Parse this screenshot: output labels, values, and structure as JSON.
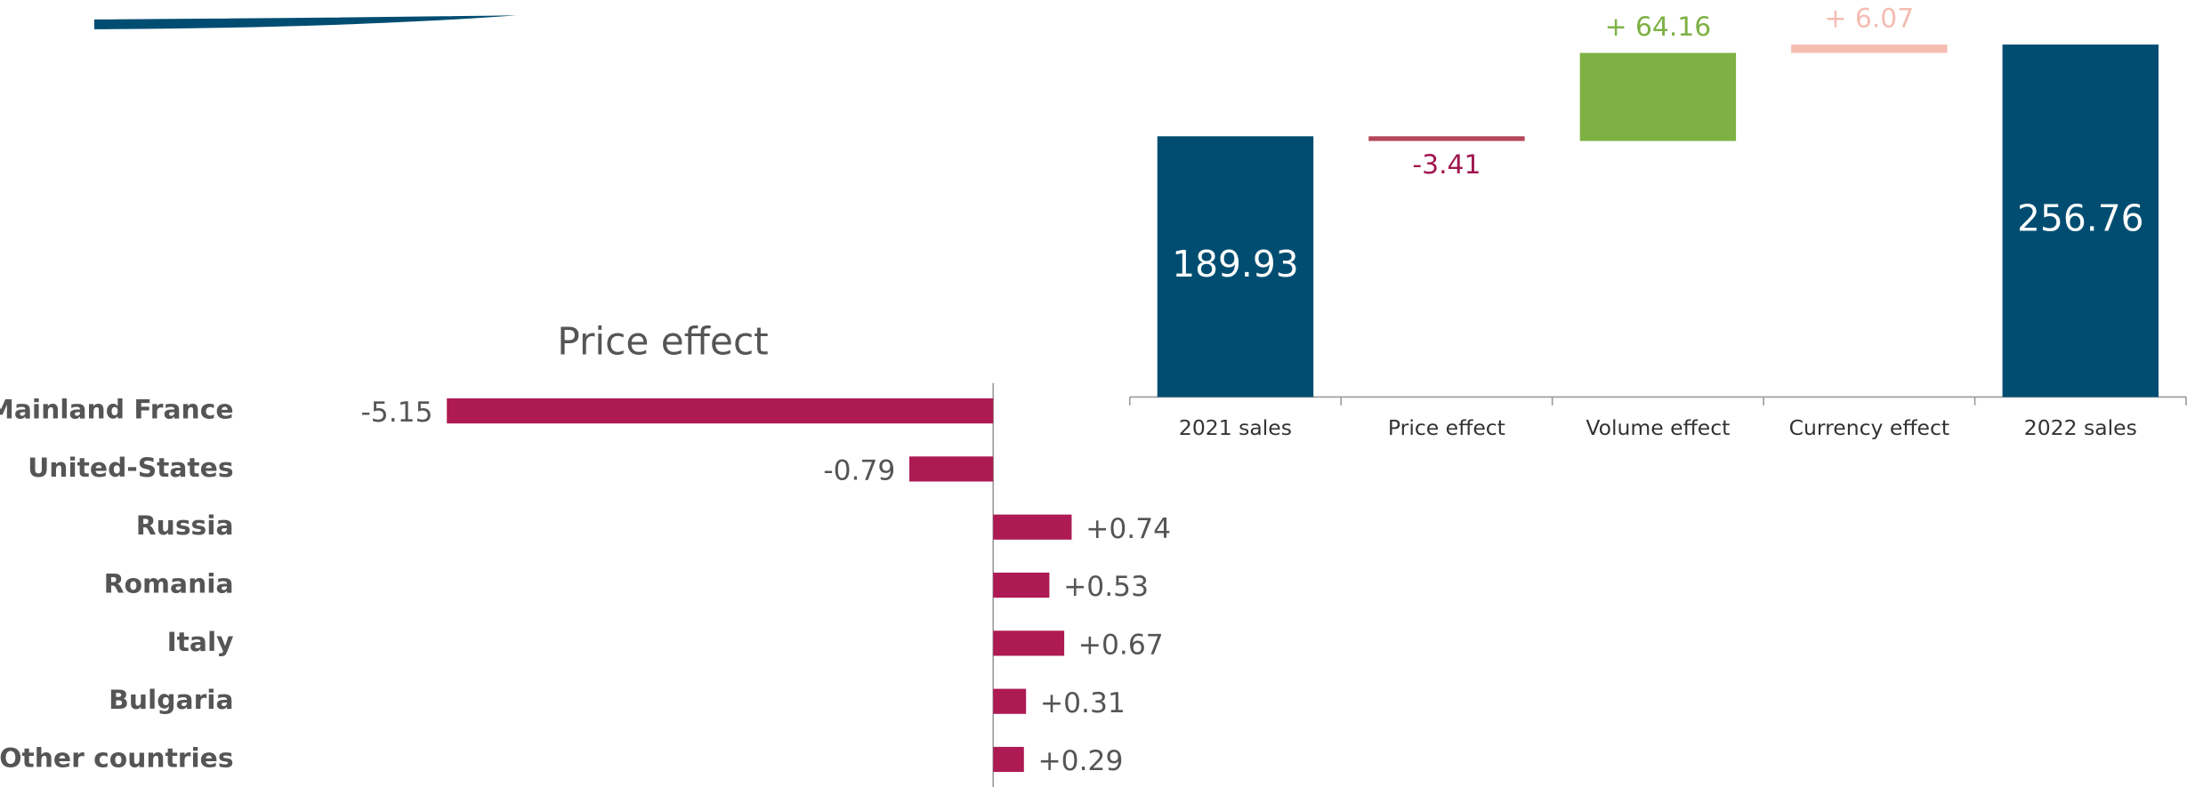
{
  "chart_data": [
    {
      "type": "waterfall",
      "categories": [
        "2021 sales",
        "Price effect",
        "Volume effect",
        "Currency effect",
        "2022 sales"
      ],
      "values": [
        189.93,
        -3.41,
        64.16,
        6.07,
        256.76
      ],
      "value_labels": [
        "189.93",
        "-3.41",
        "+ 64.16",
        "+ 6.07",
        "256.76"
      ],
      "colors": [
        "#004d71",
        "#b5475a",
        "#7db143",
        "#f5bcb2",
        "#004d71"
      ],
      "label_colors": [
        "#ffffff",
        "#a0174f",
        "#7db143",
        "#f5bcb2",
        "#ffffff"
      ],
      "totals": [
        0,
        4
      ]
    },
    {
      "type": "hbar",
      "title": "Price effect",
      "categories": [
        "Mainland France",
        "United-States",
        "Russia",
        "Romania",
        "Italy",
        "Bulgaria",
        "Other countries"
      ],
      "values": [
        -5.15,
        -0.79,
        0.74,
        0.53,
        0.67,
        0.31,
        0.29
      ],
      "value_labels": [
        "-5.15",
        "-0.79",
        "+0.74",
        "+0.53",
        "+0.67",
        "+0.31",
        "+0.29"
      ],
      "color": "#ad1a54"
    }
  ]
}
